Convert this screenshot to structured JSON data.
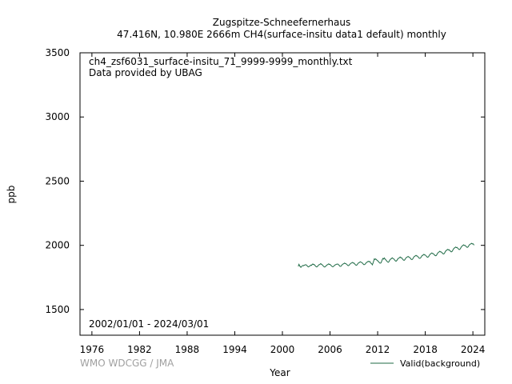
{
  "title": {
    "station": "Zugspitze-Schneefernerhaus",
    "subtitle": "47.416N, 10.980E 2666m    CH4(surface-insitu data1 default) monthly"
  },
  "annotations": {
    "filename": "ch4_zsf6031_surface-insitu_71_9999-9999_monthly.txt",
    "provider": "Data provided by UBAG",
    "period": "2002/01/01 - 2024/03/01"
  },
  "credit": "WMO WDCGG / JMA",
  "colors": {
    "series": "#1f6b46",
    "frame": "#000000",
    "credit": "#a0a0a0"
  },
  "chart_data": {
    "type": "line",
    "xlabel": "Year",
    "ylabel": "ppb",
    "xlim": [
      1974.5,
      2025.5
    ],
    "ylim": [
      1300,
      3500
    ],
    "x_ticks": [
      1976,
      1982,
      1988,
      1994,
      2000,
      2006,
      2012,
      2018,
      2024
    ],
    "y_ticks": [
      1500,
      2000,
      2500,
      3000,
      3500
    ],
    "grid": false,
    "legend": {
      "position": "bottom-right"
    },
    "series": [
      {
        "name": "Valid(background)",
        "color": "#1f6b46",
        "start": "2002-01",
        "end": "2024-03",
        "monthly_ppb": [
          1836,
          1852,
          1842,
          1833,
          1829,
          1836,
          1839,
          1843,
          1841,
          1845,
          1847,
          1849,
          1848,
          1843,
          1837,
          1832,
          1834,
          1838,
          1841,
          1846,
          1844,
          1851,
          1855,
          1850,
          1851,
          1845,
          1839,
          1834,
          1832,
          1836,
          1842,
          1848,
          1850,
          1853,
          1858,
          1852,
          1850,
          1844,
          1838,
          1833,
          1831,
          1835,
          1840,
          1846,
          1849,
          1852,
          1856,
          1851,
          1852,
          1846,
          1841,
          1836,
          1833,
          1834,
          1840,
          1845,
          1848,
          1851,
          1853,
          1854,
          1854,
          1849,
          1843,
          1837,
          1836,
          1839,
          1847,
          1853,
          1855,
          1858,
          1862,
          1858,
          1857,
          1853,
          1848,
          1843,
          1842,
          1846,
          1853,
          1858,
          1861,
          1864,
          1867,
          1862,
          1863,
          1857,
          1851,
          1846,
          1845,
          1849,
          1857,
          1863,
          1865,
          1869,
          1872,
          1868,
          1866,
          1862,
          1856,
          1850,
          1850,
          1853,
          1860,
          1866,
          1869,
          1873,
          1876,
          1872,
          1875,
          1868,
          1860,
          1856,
          1848,
          1862,
          1878,
          1895,
          1890,
          1894,
          1889,
          1884,
          1880,
          1875,
          1869,
          1863,
          1861,
          1863,
          1875,
          1889,
          1898,
          1893,
          1902,
          1895,
          1889,
          1883,
          1876,
          1871,
          1868,
          1872,
          1882,
          1890,
          1894,
          1897,
          1903,
          1898,
          1896,
          1891,
          1884,
          1878,
          1877,
          1882,
          1890,
          1898,
          1900,
          1904,
          1909,
          1903,
          1904,
          1898,
          1891,
          1885,
          1883,
          1887,
          1896,
          1903,
          1907,
          1910,
          1914,
          1909,
          1908,
          1902,
          1896,
          1890,
          1889,
          1894,
          1903,
          1911,
          1915,
          1918,
          1922,
          1917,
          1917,
          1911,
          1905,
          1899,
          1899,
          1903,
          1911,
          1919,
          1922,
          1926,
          1930,
          1925,
          1925,
          1919,
          1914,
          1908,
          1908,
          1912,
          1921,
          1929,
          1933,
          1937,
          1941,
          1936,
          1936,
          1930,
          1925,
          1920,
          1919,
          1923,
          1933,
          1941,
          1946,
          1949,
          1954,
          1949,
          1949,
          1944,
          1939,
          1934,
          1933,
          1938,
          1948,
          1957,
          1961,
          1965,
          1969,
          1964,
          1966,
          1960,
          1955,
          1950,
          1950,
          1956,
          1966,
          1974,
          1979,
          1983,
          1987,
          1982,
          1984,
          1978,
          1973,
          1968,
          1968,
          1973,
          1983,
          1991,
          1996,
          2000,
          2004,
          1999,
          2000,
          1995,
          1990,
          1985,
          1985,
          1990,
          1999,
          2006,
          2009,
          2012,
          2016,
          2011,
          2013,
          2007,
          2002
        ]
      }
    ]
  }
}
